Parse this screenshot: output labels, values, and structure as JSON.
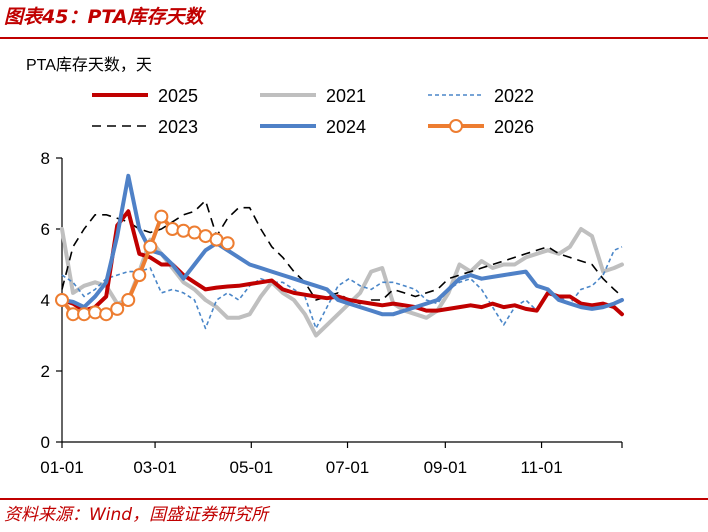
{
  "figure": {
    "title": "图表45：PTA库存天数",
    "source": "资料来源：Wind，国盛证券研究所"
  },
  "chart_data": {
    "type": "line",
    "ylabel": "PTA库存天数，天",
    "ylim": [
      0,
      8
    ],
    "yticks": [
      "0",
      "2",
      "4",
      "6",
      "8"
    ],
    "xlim": [
      1,
      356
    ],
    "xticks": [
      {
        "label": "01-01",
        "day": 1
      },
      {
        "label": "03-01",
        "day": 60
      },
      {
        "label": "05-01",
        "day": 121
      },
      {
        "label": "07-01",
        "day": 182
      },
      {
        "label": "09-01",
        "day": 244
      },
      {
        "label": "11-01",
        "day": 305
      }
    ],
    "series": [
      {
        "name": "2025",
        "color": "#c00000",
        "dash": "",
        "width": 4,
        "marker": false,
        "x": [
          1,
          8,
          15,
          22,
          29,
          36,
          43,
          50,
          57,
          64,
          71,
          78,
          85,
          92,
          99,
          106,
          113,
          120,
          127,
          134,
          141,
          148,
          155,
          162,
          169,
          176,
          183,
          190,
          197,
          204,
          211,
          218,
          225,
          232,
          239,
          246,
          253,
          260,
          267,
          274,
          281,
          288,
          295,
          302,
          309,
          316,
          323,
          330,
          337,
          344,
          351,
          356
        ],
        "y": [
          4.0,
          3.9,
          3.7,
          3.8,
          4.1,
          6.1,
          6.5,
          5.3,
          5.2,
          5.0,
          5.0,
          4.7,
          4.5,
          4.3,
          4.35,
          4.38,
          4.4,
          4.45,
          4.5,
          4.55,
          4.3,
          4.2,
          4.15,
          4.1,
          4.05,
          4.1,
          4.0,
          3.95,
          3.9,
          3.85,
          3.9,
          3.85,
          3.8,
          3.7,
          3.7,
          3.75,
          3.8,
          3.85,
          3.8,
          3.9,
          3.8,
          3.85,
          3.75,
          3.7,
          4.2,
          4.1,
          4.1,
          3.9,
          3.85,
          3.9,
          3.8,
          3.6
        ]
      },
      {
        "name": "2021",
        "color": "#bfbfbf",
        "dash": "",
        "width": 4,
        "marker": false,
        "x": [
          1,
          8,
          15,
          22,
          29,
          36,
          43,
          50,
          57,
          64,
          71,
          78,
          85,
          92,
          99,
          106,
          113,
          120,
          127,
          134,
          141,
          148,
          155,
          162,
          169,
          176,
          183,
          190,
          197,
          204,
          211,
          218,
          225,
          232,
          239,
          246,
          253,
          260,
          267,
          274,
          281,
          288,
          295,
          302,
          309,
          316,
          323,
          330,
          337,
          344,
          351,
          356
        ],
        "y": [
          6.0,
          4.2,
          4.4,
          4.5,
          4.4,
          3.9,
          4.0,
          4.8,
          5.7,
          5.3,
          4.9,
          4.5,
          4.3,
          4.0,
          3.8,
          3.5,
          3.5,
          3.6,
          4.1,
          4.5,
          4.2,
          4.0,
          3.6,
          3.0,
          3.3,
          3.6,
          3.9,
          4.2,
          4.8,
          4.9,
          3.9,
          3.7,
          3.6,
          3.5,
          3.7,
          4.2,
          5.0,
          4.8,
          5.1,
          4.9,
          5.0,
          5.0,
          5.2,
          5.3,
          5.4,
          5.3,
          5.5,
          6.0,
          5.8,
          4.8,
          4.9,
          5.0
        ]
      },
      {
        "name": "2022",
        "color": "#4a86c8",
        "dash": "4,3",
        "width": 1.6,
        "marker": false,
        "x": [
          1,
          8,
          15,
          22,
          29,
          36,
          43,
          50,
          57,
          64,
          71,
          78,
          85,
          92,
          99,
          106,
          113,
          120,
          127,
          134,
          141,
          148,
          155,
          162,
          169,
          176,
          183,
          190,
          197,
          204,
          211,
          218,
          225,
          232,
          239,
          246,
          253,
          260,
          267,
          274,
          281,
          288,
          295,
          302,
          309,
          316,
          323,
          330,
          337,
          344,
          351,
          356
        ],
        "y": [
          4.7,
          4.5,
          4.1,
          4.3,
          4.6,
          4.7,
          4.8,
          4.8,
          4.9,
          4.2,
          4.3,
          4.2,
          4.0,
          3.2,
          4.0,
          4.2,
          4.0,
          4.4,
          4.6,
          4.5,
          4.5,
          4.3,
          4.1,
          3.2,
          3.8,
          4.4,
          4.6,
          4.4,
          4.3,
          4.5,
          4.5,
          4.4,
          4.3,
          4.0,
          3.9,
          4.3,
          4.5,
          4.6,
          4.3,
          3.8,
          3.3,
          3.8,
          4.0,
          3.7,
          4.2,
          4.1,
          3.9,
          4.3,
          4.4,
          4.7,
          5.4,
          5.5
        ]
      },
      {
        "name": "2023",
        "color": "#000000",
        "dash": "9,6",
        "width": 1.6,
        "marker": false,
        "x": [
          1,
          8,
          15,
          22,
          29,
          36,
          43,
          50,
          57,
          64,
          71,
          78,
          85,
          92,
          99,
          106,
          113,
          120,
          127,
          134,
          141,
          148,
          155,
          162,
          169,
          176,
          183,
          190,
          197,
          204,
          211,
          218,
          225,
          232,
          239,
          246,
          253,
          260,
          267,
          274,
          281,
          288,
          295,
          302,
          309,
          316,
          323,
          330,
          337,
          344,
          351,
          356
        ],
        "y": [
          4.3,
          5.5,
          6.0,
          6.4,
          6.4,
          6.3,
          6.2,
          6.0,
          5.9,
          6.0,
          6.2,
          6.4,
          6.5,
          6.8,
          5.8,
          6.3,
          6.6,
          6.6,
          6.0,
          5.5,
          5.2,
          4.8,
          4.5,
          4.0,
          4.1,
          4.2,
          4.0,
          3.9,
          4.0,
          4.0,
          4.3,
          4.2,
          4.1,
          4.2,
          4.3,
          4.6,
          4.7,
          4.8,
          4.9,
          5.0,
          5.1,
          5.2,
          5.3,
          5.4,
          5.5,
          5.3,
          5.2,
          5.1,
          5.0,
          4.6,
          4.3,
          4.1
        ]
      },
      {
        "name": "2024",
        "color": "#4f81c7",
        "dash": "",
        "width": 4,
        "marker": false,
        "x": [
          1,
          8,
          15,
          22,
          29,
          36,
          43,
          50,
          57,
          64,
          71,
          78,
          85,
          92,
          99,
          106,
          113,
          120,
          127,
          134,
          141,
          148,
          155,
          162,
          169,
          176,
          183,
          190,
          197,
          204,
          211,
          218,
          225,
          232,
          239,
          246,
          253,
          260,
          267,
          274,
          281,
          288,
          295,
          302,
          309,
          316,
          323,
          330,
          337,
          344,
          351,
          356
        ],
        "y": [
          4.0,
          3.95,
          3.8,
          4.1,
          4.5,
          5.8,
          7.5,
          6.0,
          5.4,
          5.3,
          5.0,
          4.6,
          5.0,
          5.4,
          5.6,
          5.4,
          5.2,
          5.0,
          4.9,
          4.8,
          4.7,
          4.6,
          4.5,
          4.4,
          4.3,
          4.0,
          3.9,
          3.8,
          3.7,
          3.6,
          3.6,
          3.7,
          3.8,
          3.9,
          4.0,
          4.3,
          4.6,
          4.7,
          4.6,
          4.65,
          4.7,
          4.75,
          4.8,
          4.4,
          4.3,
          4.0,
          3.9,
          3.8,
          3.75,
          3.8,
          3.9,
          4.0
        ]
      },
      {
        "name": "2026",
        "color": "#ed7d31",
        "dash": "",
        "width": 4,
        "marker": true,
        "x": [
          1,
          8,
          15,
          22,
          29,
          36,
          43,
          50,
          57,
          64,
          71,
          78,
          85,
          92,
          99,
          106
        ],
        "y": [
          4.0,
          3.6,
          3.6,
          3.65,
          3.6,
          3.75,
          4.0,
          4.7,
          5.5,
          6.35,
          6.0,
          5.95,
          5.9,
          5.8,
          5.7,
          5.6
        ]
      }
    ]
  }
}
